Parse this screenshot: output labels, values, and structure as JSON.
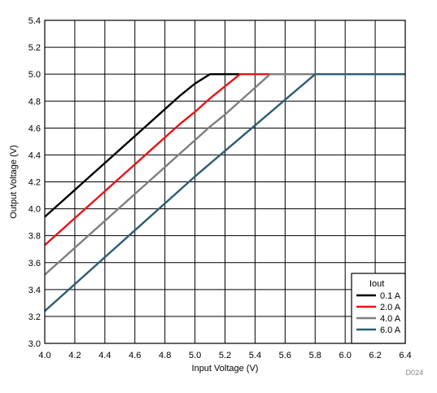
{
  "chart_data": {
    "type": "line",
    "xlabel": "Input Voltage (V)",
    "ylabel": "Output Voltage (V)",
    "xlim": [
      4.0,
      6.4
    ],
    "ylim": [
      3.0,
      5.4
    ],
    "xticks": [
      "4.0",
      "4.2",
      "4.4",
      "4.6",
      "4.8",
      "5.0",
      "5.2",
      "5.4",
      "5.6",
      "5.8",
      "6.0",
      "6.2",
      "6.4"
    ],
    "yticks": [
      "3.0",
      "3.2",
      "3.4",
      "3.6",
      "3.8",
      "4.0",
      "4.2",
      "4.4",
      "4.6",
      "4.8",
      "5.0",
      "5.2",
      "5.4"
    ],
    "grid": true,
    "legend": {
      "title": "Iout",
      "placement": "bottom-right"
    },
    "figure_id": "D024",
    "series": [
      {
        "name": "0.1 A",
        "color": "#000000",
        "x": [
          4.0,
          4.1,
          4.2,
          4.3,
          4.4,
          4.5,
          4.6,
          4.7,
          4.8,
          4.9,
          5.0,
          5.1,
          5.2,
          5.3
        ],
        "y": [
          3.94,
          4.04,
          4.14,
          4.24,
          4.34,
          4.44,
          4.54,
          4.64,
          4.74,
          4.84,
          4.93,
          5.0,
          5.0,
          5.0
        ]
      },
      {
        "name": "2.0 A",
        "color": "#e8141a",
        "x": [
          4.0,
          4.1,
          4.2,
          4.3,
          4.4,
          4.5,
          4.6,
          4.7,
          4.8,
          4.9,
          5.0,
          5.1,
          5.2,
          5.3,
          5.4,
          5.5
        ],
        "y": [
          3.73,
          3.83,
          3.93,
          4.03,
          4.13,
          4.23,
          4.33,
          4.43,
          4.53,
          4.63,
          4.72,
          4.82,
          4.91,
          5.0,
          5.0,
          5.0
        ]
      },
      {
        "name": "4.0 A",
        "color": "#7f7f7f",
        "x": [
          4.0,
          4.1,
          4.2,
          4.3,
          4.4,
          4.5,
          4.6,
          4.7,
          4.8,
          4.9,
          5.0,
          5.1,
          5.2,
          5.3,
          5.4,
          5.5,
          5.6,
          5.7,
          5.8
        ],
        "y": [
          3.51,
          3.61,
          3.71,
          3.81,
          3.91,
          4.01,
          4.11,
          4.21,
          4.31,
          4.41,
          4.51,
          4.61,
          4.7,
          4.8,
          4.9,
          5.0,
          5.0,
          5.0,
          5.0
        ]
      },
      {
        "name": "6.0 A",
        "color": "#2e5c73",
        "x": [
          4.0,
          4.2,
          4.4,
          4.6,
          4.8,
          5.0,
          5.2,
          5.4,
          5.6,
          5.8,
          6.0,
          6.2,
          6.4
        ],
        "y": [
          3.24,
          3.44,
          3.64,
          3.84,
          4.04,
          4.24,
          4.43,
          4.62,
          4.81,
          5.0,
          5.0,
          5.0,
          5.0
        ]
      }
    ]
  }
}
